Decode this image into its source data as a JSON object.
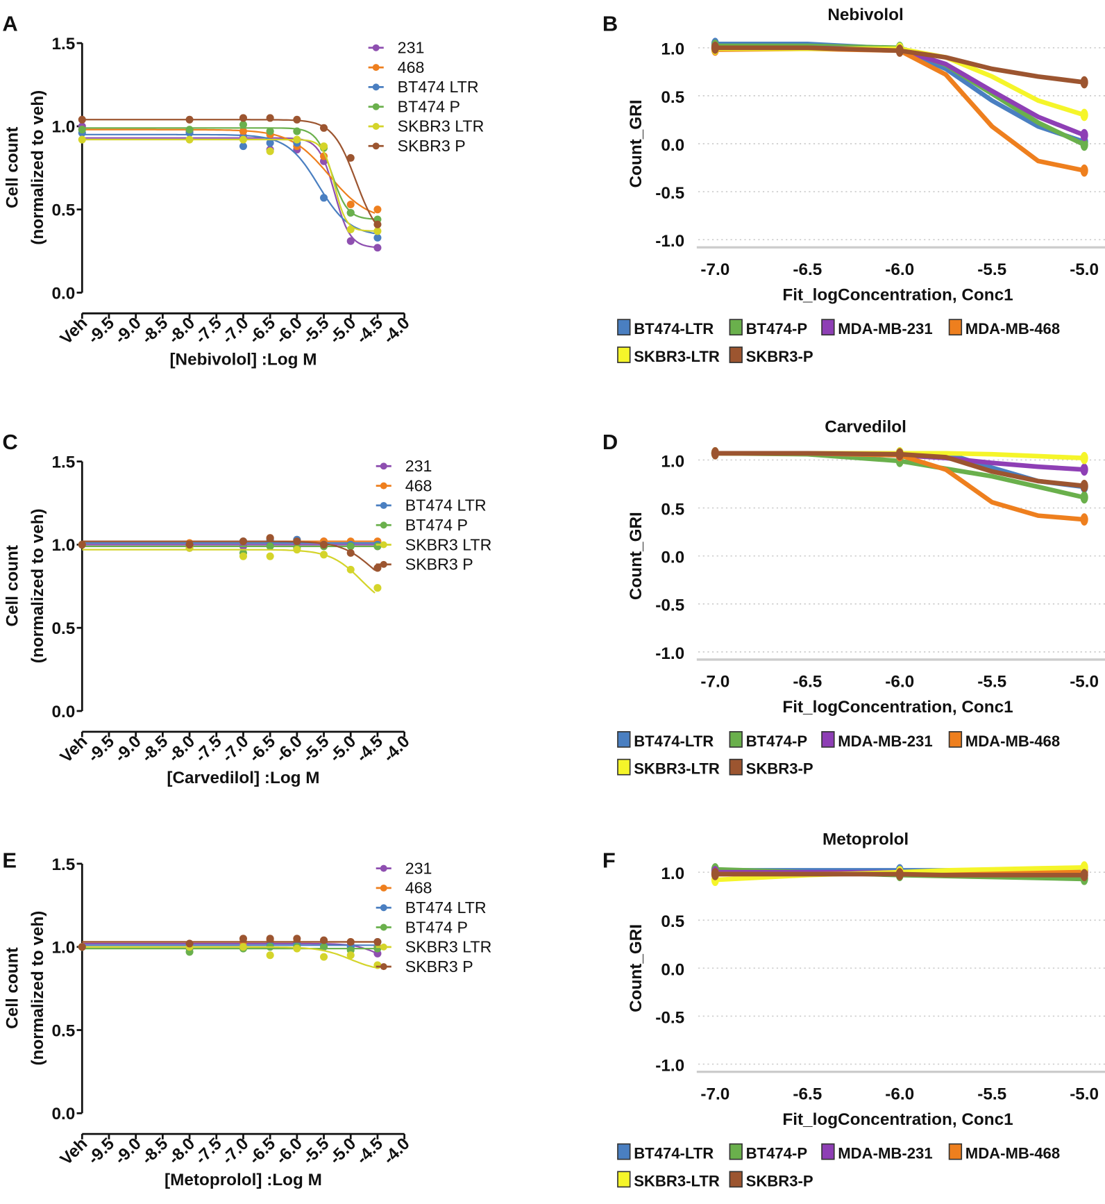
{
  "panel_letters": [
    "A",
    "B",
    "C",
    "D",
    "E",
    "F"
  ],
  "chart_data": [
    {
      "panel": "A",
      "type": "line",
      "style": "dose-response",
      "title": "",
      "xlabel": "[Nebivolol] :Log M",
      "ylabel": "Cell count",
      "ylabel2": "(normalized to veh)",
      "xlim": [
        -10,
        -4.0
      ],
      "ylim": [
        0,
        1.5
      ],
      "xticks": [
        -10,
        -9.5,
        -9,
        -8.5,
        -8,
        -7.5,
        -7,
        -6.5,
        -6,
        -5.5,
        -5,
        -4.5,
        -4
      ],
      "xtick_labels": [
        "Veh",
        "-9.5",
        "-9.0",
        "-8.5",
        "-8.0",
        "-7.5",
        "-7.0",
        "-6.5",
        "-6.0",
        "-5.5",
        "-5.0",
        "-4.5",
        "-4.0"
      ],
      "yticks": [
        0,
        0.5,
        1.0,
        1.5
      ],
      "ytick_labels": [
        "0.0",
        "0.5",
        "1.0",
        "1.5"
      ],
      "x": [
        -10,
        -8,
        -7,
        -6.5,
        -6,
        -5.5,
        -5,
        -4.5
      ],
      "series": [
        {
          "name": "231",
          "color": "#8e4fb0",
          "values": [
            1.0,
            0.97,
            0.94,
            0.86,
            0.86,
            0.79,
            0.31,
            0.27
          ],
          "fit": {
            "top": 0.93,
            "bottom": 0.27,
            "logEC50": -5.3,
            "hill": 3
          }
        },
        {
          "name": "468",
          "color": "#ee7f1e",
          "values": [
            0.98,
            0.97,
            0.97,
            0.95,
            0.88,
            0.82,
            0.53,
            0.5
          ],
          "fit": {
            "top": 0.98,
            "bottom": 0.43,
            "logEC50": -5.4,
            "hill": 1.2
          }
        },
        {
          "name": "BT474 LTR",
          "color": "#4a7fc1",
          "values": [
            0.96,
            0.96,
            0.88,
            0.9,
            0.9,
            0.57,
            0.48,
            0.33
          ],
          "fit": {
            "top": 0.95,
            "bottom": 0.34,
            "logEC50": -5.6,
            "hill": 1.5
          }
        },
        {
          "name": "BT474 P",
          "color": "#6ab04c",
          "values": [
            0.98,
            0.98,
            1.01,
            0.97,
            0.97,
            0.87,
            0.48,
            0.44
          ],
          "fit": {
            "top": 0.99,
            "bottom": 0.44,
            "logEC50": -5.35,
            "hill": 3
          }
        },
        {
          "name": "SKBR3 LTR",
          "color": "#d4d42a",
          "values": [
            0.92,
            0.92,
            0.92,
            0.85,
            0.92,
            0.88,
            0.38,
            0.37
          ],
          "fit": {
            "top": 0.92,
            "bottom": 0.37,
            "logEC50": -5.3,
            "hill": 4
          }
        },
        {
          "name": "SKBR3 P",
          "color": "#9c5530",
          "values": [
            1.04,
            1.04,
            1.05,
            1.05,
            1.04,
            0.99,
            0.81,
            0.41
          ],
          "fit": {
            "top": 1.04,
            "bottom": 0.3,
            "logEC50": -4.9,
            "hill": 2
          }
        }
      ]
    },
    {
      "panel": "B",
      "type": "line",
      "style": "gr",
      "title": "Nebivolol",
      "xlabel": "Fit_logConcentration, Conc1",
      "ylabel": "Count_GRI",
      "xlim": [
        -7.0,
        -5.0
      ],
      "ylim": [
        -1.0,
        1.0
      ],
      "xticks": [
        -7,
        -6.5,
        -6,
        -5.5,
        -5
      ],
      "xtick_labels": [
        "-7.0",
        "-6.5",
        "-6.0",
        "-5.5",
        "-5.0"
      ],
      "yticks": [
        -1,
        -0.5,
        0,
        0.5,
        1
      ],
      "ytick_labels": [
        "-1.0",
        "-0.5",
        "0.0",
        "0.5",
        "1.0"
      ],
      "x": [
        -7,
        -6.5,
        -6,
        -5.75,
        -5.5,
        -5.25,
        -5
      ],
      "series": [
        {
          "name": "BT474-LTR",
          "color": "#4a7fc1",
          "values": [
            1.04,
            1.04,
            0.99,
            0.78,
            0.45,
            0.18,
            0.02
          ]
        },
        {
          "name": "BT474-P",
          "color": "#6ab04c",
          "values": [
            1.02,
            1.02,
            1.0,
            0.82,
            0.52,
            0.22,
            -0.01
          ]
        },
        {
          "name": "MDA-MB-231",
          "color": "#8e3fb5",
          "values": [
            1.0,
            1.0,
            0.98,
            0.83,
            0.55,
            0.28,
            0.09
          ]
        },
        {
          "name": "MDA-MB-468",
          "color": "#ee7f1e",
          "values": [
            0.98,
            0.99,
            0.97,
            0.72,
            0.18,
            -0.18,
            -0.28
          ]
        },
        {
          "name": "SKBR3-LTR",
          "color": "#f5f52a",
          "values": [
            0.99,
            0.99,
            0.99,
            0.9,
            0.7,
            0.45,
            0.3
          ]
        },
        {
          "name": "SKBR3-P",
          "color": "#9c5530",
          "values": [
            1.0,
            1.0,
            0.97,
            0.9,
            0.78,
            0.7,
            0.64
          ]
        }
      ]
    },
    {
      "panel": "C",
      "type": "line",
      "style": "dose-response",
      "title": "",
      "xlabel": "[Carvedilol] :Log M",
      "ylabel": "Cell count",
      "ylabel2": "(normalized to veh)",
      "xlim": [
        -10,
        -4.0
      ],
      "ylim": [
        0,
        1.5
      ],
      "xticks": [
        -10,
        -9.5,
        -9,
        -8.5,
        -8,
        -7.5,
        -7,
        -6.5,
        -6,
        -5.5,
        -5,
        -4.5,
        -4
      ],
      "xtick_labels": [
        "Veh",
        "-9.5",
        "-9.0",
        "-8.5",
        "-8.0",
        "-7.5",
        "-7.0",
        "-6.5",
        "-6.0",
        "-5.5",
        "-5.0",
        "-4.5",
        "-4.0"
      ],
      "yticks": [
        0,
        0.5,
        1.0,
        1.5
      ],
      "ytick_labels": [
        "0.0",
        "0.5",
        "1.0",
        "1.5"
      ],
      "x": [
        -10,
        -8,
        -7,
        -6.5,
        -6,
        -5.5,
        -5,
        -4.5
      ],
      "series": [
        {
          "name": "231",
          "color": "#8e4fb0",
          "values": [
            1.0,
            0.98,
            0.99,
            1.01,
            1.01,
            1.02,
            1.01,
            0.99
          ],
          "fit": {
            "top": 1.0,
            "bottom": 1.0,
            "logEC50": -5,
            "hill": 1
          }
        },
        {
          "name": "468",
          "color": "#ee7f1e",
          "values": [
            1.0,
            1.01,
            1.02,
            1.04,
            1.03,
            1.02,
            1.02,
            1.02
          ],
          "fit": {
            "top": 1.02,
            "bottom": 1.02,
            "logEC50": -5,
            "hill": 1
          }
        },
        {
          "name": "BT474 LTR",
          "color": "#4a7fc1",
          "values": [
            1.0,
            1.0,
            1.02,
            1.03,
            1.03,
            1.0,
            1.0,
            1.0
          ],
          "fit": {
            "top": 1.01,
            "bottom": 1.01,
            "logEC50": -5,
            "hill": 1
          }
        },
        {
          "name": "BT474 P",
          "color": "#6ab04c",
          "values": [
            1.0,
            1.0,
            0.95,
            0.99,
            0.98,
            0.99,
            0.99,
            0.99
          ],
          "fit": {
            "top": 0.99,
            "bottom": 0.99,
            "logEC50": -5,
            "hill": 1
          }
        },
        {
          "name": "SKBR3 LTR",
          "color": "#d4d42a",
          "values": [
            1.0,
            0.98,
            0.93,
            0.93,
            0.97,
            0.94,
            0.85,
            0.74
          ],
          "fit": {
            "top": 0.97,
            "bottom": 0.6,
            "logEC50": -4.8,
            "hill": 1.5
          }
        },
        {
          "name": "SKBR3 P",
          "color": "#9c5530",
          "values": [
            1.0,
            1.0,
            1.02,
            1.04,
            1.02,
            1.0,
            0.95,
            0.86
          ],
          "fit": {
            "top": 1.02,
            "bottom": 0.7,
            "logEC50": -4.6,
            "hill": 1.5
          }
        }
      ]
    },
    {
      "panel": "D",
      "type": "line",
      "style": "gr",
      "title": "Carvedilol",
      "xlabel": "Fit_logConcentration, Conc1",
      "ylabel": "Count_GRI",
      "xlim": [
        -7.0,
        -5.0
      ],
      "ylim": [
        -1.0,
        1.0
      ],
      "xticks": [
        -7,
        -6.5,
        -6,
        -5.5,
        -5
      ],
      "xtick_labels": [
        "-7.0",
        "-6.5",
        "-6.0",
        "-5.5",
        "-5.0"
      ],
      "yticks": [
        -1,
        -0.5,
        0,
        0.5,
        1
      ],
      "ytick_labels": [
        "-1.0",
        "-0.5",
        "0.0",
        "0.5",
        "1.0"
      ],
      "x": [
        -7,
        -6.5,
        -6,
        -5.75,
        -5.5,
        -5.25,
        -5
      ],
      "series": [
        {
          "name": "BT474-LTR",
          "color": "#4a7fc1",
          "values": [
            1.07,
            1.07,
            1.07,
            1.07,
            0.92,
            0.78,
            0.72
          ]
        },
        {
          "name": "BT474-P",
          "color": "#6ab04c",
          "values": [
            1.07,
            1.06,
            0.99,
            0.91,
            0.83,
            0.72,
            0.61
          ]
        },
        {
          "name": "MDA-MB-231",
          "color": "#8e3fb5",
          "values": [
            1.07,
            1.07,
            1.05,
            1.02,
            0.97,
            0.93,
            0.9
          ]
        },
        {
          "name": "MDA-MB-468",
          "color": "#ee7f1e",
          "values": [
            1.07,
            1.07,
            1.05,
            0.9,
            0.56,
            0.42,
            0.38
          ]
        },
        {
          "name": "SKBR3-LTR",
          "color": "#f5f52a",
          "values": [
            1.07,
            1.07,
            1.07,
            1.07,
            1.06,
            1.04,
            1.02
          ]
        },
        {
          "name": "SKBR3-P",
          "color": "#9c5530",
          "values": [
            1.07,
            1.07,
            1.06,
            1.03,
            0.88,
            0.78,
            0.73
          ]
        }
      ]
    },
    {
      "panel": "E",
      "type": "line",
      "style": "dose-response",
      "title": "",
      "xlabel": "[Metoprolol] :Log M",
      "ylabel": "Cell count",
      "ylabel2": "(normalized to veh)",
      "xlim": [
        -10,
        -4.0
      ],
      "ylim": [
        0,
        1.5
      ],
      "xticks": [
        -10,
        -9.5,
        -9,
        -8.5,
        -8,
        -7.5,
        -7,
        -6.5,
        -6,
        -5.5,
        -5,
        -4.5,
        -4
      ],
      "xtick_labels": [
        "Veh",
        "-9.5",
        "-9.0",
        "-8.5",
        "-8.0",
        "-7.5",
        "-7.0",
        "-6.5",
        "-6.0",
        "-5.5",
        "-5.0",
        "-4.5",
        "-4.0"
      ],
      "yticks": [
        0,
        0.5,
        1.0,
        1.5
      ],
      "ytick_labels": [
        "0.0",
        "0.5",
        "1.0",
        "1.5"
      ],
      "x": [
        -10,
        -8,
        -7,
        -6.5,
        -6,
        -5.5,
        -5,
        -4.5
      ],
      "series": [
        {
          "name": "231",
          "color": "#8e4fb0",
          "values": [
            1.0,
            0.99,
            1.0,
            1.02,
            1.02,
            1.02,
            1.01,
            0.96
          ],
          "fit": {
            "top": 1.02,
            "bottom": 0.9,
            "logEC50": -4.5,
            "hill": 2
          }
        },
        {
          "name": "468",
          "color": "#ee7f1e",
          "values": [
            1.0,
            1.0,
            1.03,
            1.04,
            1.03,
            1.03,
            1.03,
            1.0
          ],
          "fit": {
            "top": 1.03,
            "bottom": 1.03,
            "logEC50": -5,
            "hill": 1
          }
        },
        {
          "name": "BT474 LTR",
          "color": "#4a7fc1",
          "values": [
            1.0,
            1.0,
            1.0,
            1.01,
            1.02,
            1.01,
            1.0,
            1.03
          ],
          "fit": {
            "top": 1.01,
            "bottom": 1.01,
            "logEC50": -5,
            "hill": 1
          }
        },
        {
          "name": "BT474 P",
          "color": "#6ab04c",
          "values": [
            1.0,
            0.97,
            0.99,
            1.0,
            1.0,
            1.0,
            0.98,
            0.99
          ],
          "fit": {
            "top": 0.99,
            "bottom": 0.99,
            "logEC50": -5,
            "hill": 1
          }
        },
        {
          "name": "SKBR3 LTR",
          "color": "#d4d42a",
          "values": [
            1.0,
            1.0,
            1.0,
            0.95,
            0.99,
            0.94,
            0.95,
            0.89
          ],
          "fit": {
            "top": 1.0,
            "bottom": 0.85,
            "logEC50": -5.0,
            "hill": 1.5
          }
        },
        {
          "name": "SKBR3 P",
          "color": "#9c5530",
          "values": [
            1.0,
            1.02,
            1.05,
            1.05,
            1.05,
            1.04,
            1.03,
            1.03
          ],
          "fit": {
            "top": 1.03,
            "bottom": 1.03,
            "logEC50": -5,
            "hill": 1
          }
        }
      ]
    },
    {
      "panel": "F",
      "type": "line",
      "style": "gr",
      "title": "Metoprolol",
      "xlabel": "Fit_logConcentration, Conc1",
      "ylabel": "Count_GRI",
      "xlim": [
        -7.0,
        -5.0
      ],
      "ylim": [
        -1.0,
        1.0
      ],
      "xticks": [
        -7,
        -6.5,
        -6,
        -5.5,
        -5
      ],
      "xtick_labels": [
        "-7.0",
        "-6.5",
        "-6.0",
        "-5.5",
        "-5.0"
      ],
      "yticks": [
        -1,
        -0.5,
        0,
        0.5,
        1
      ],
      "ytick_labels": [
        "-1.0",
        "-0.5",
        "0.0",
        "0.5",
        "1.0"
      ],
      "x": [
        -7,
        -6.5,
        -6,
        -5.75,
        -5.5,
        -5.25,
        -5
      ],
      "series": [
        {
          "name": "BT474-LTR",
          "color": "#4a7fc1",
          "values": [
            1.02,
            1.02,
            1.02,
            1.02,
            1.02,
            1.02,
            1.02
          ]
        },
        {
          "name": "BT474-P",
          "color": "#6ab04c",
          "values": [
            1.03,
            1.0,
            0.97,
            0.96,
            0.95,
            0.94,
            0.93
          ]
        },
        {
          "name": "MDA-MB-231",
          "color": "#8e3fb5",
          "values": [
            1.0,
            1.0,
            1.0,
            1.0,
            1.0,
            1.0,
            1.0
          ]
        },
        {
          "name": "MDA-MB-468",
          "color": "#ee7f1e",
          "values": [
            0.98,
            0.98,
            0.99,
            0.99,
            1.0,
            1.0,
            1.0
          ]
        },
        {
          "name": "SKBR3-LTR",
          "color": "#f5f52a",
          "values": [
            0.92,
            0.97,
            1.0,
            1.02,
            1.03,
            1.04,
            1.05
          ]
        },
        {
          "name": "SKBR3-P",
          "color": "#9c5530",
          "values": [
            0.98,
            0.98,
            0.98,
            0.97,
            0.97,
            0.97,
            0.97
          ]
        }
      ]
    }
  ]
}
